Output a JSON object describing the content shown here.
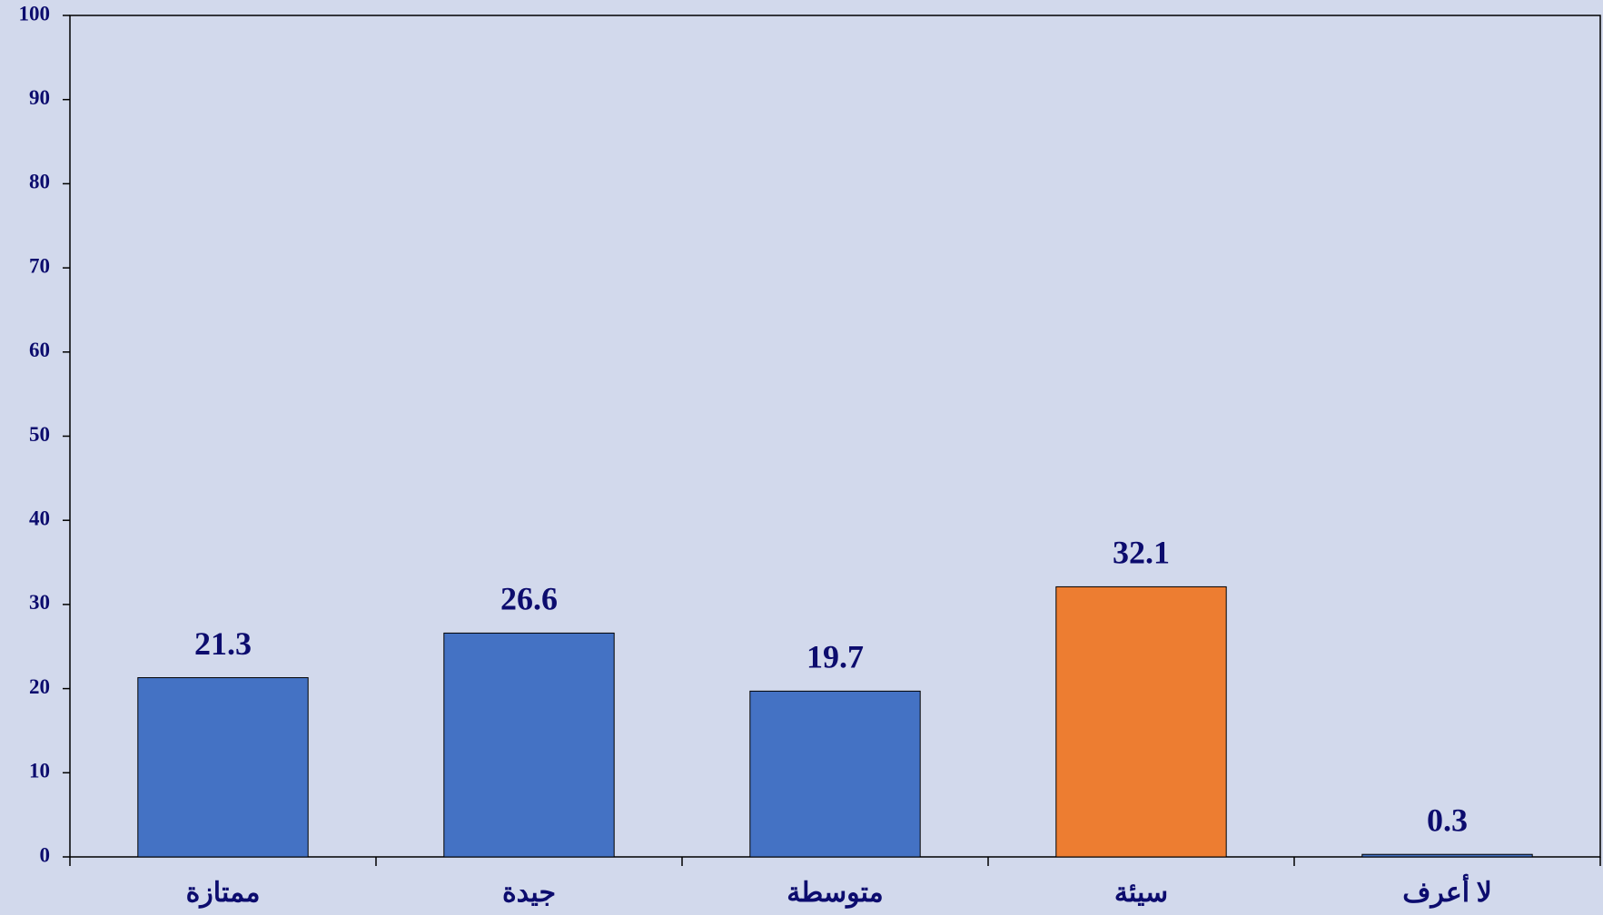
{
  "chart_data": {
    "type": "bar",
    "categories": [
      "ممتازة",
      "جيدة",
      "متوسطة",
      "سيئة",
      "لا أعرف"
    ],
    "values": [
      21.3,
      26.6,
      19.7,
      32.1,
      0.3
    ],
    "colors": [
      "#4472c4",
      "#4472c4",
      "#4472c4",
      "#ed7d31",
      "#4472c4"
    ],
    "ylim": [
      0,
      100
    ],
    "yticks": [
      0,
      10,
      20,
      30,
      40,
      50,
      60,
      70,
      80,
      90,
      100
    ],
    "grid": false
  }
}
